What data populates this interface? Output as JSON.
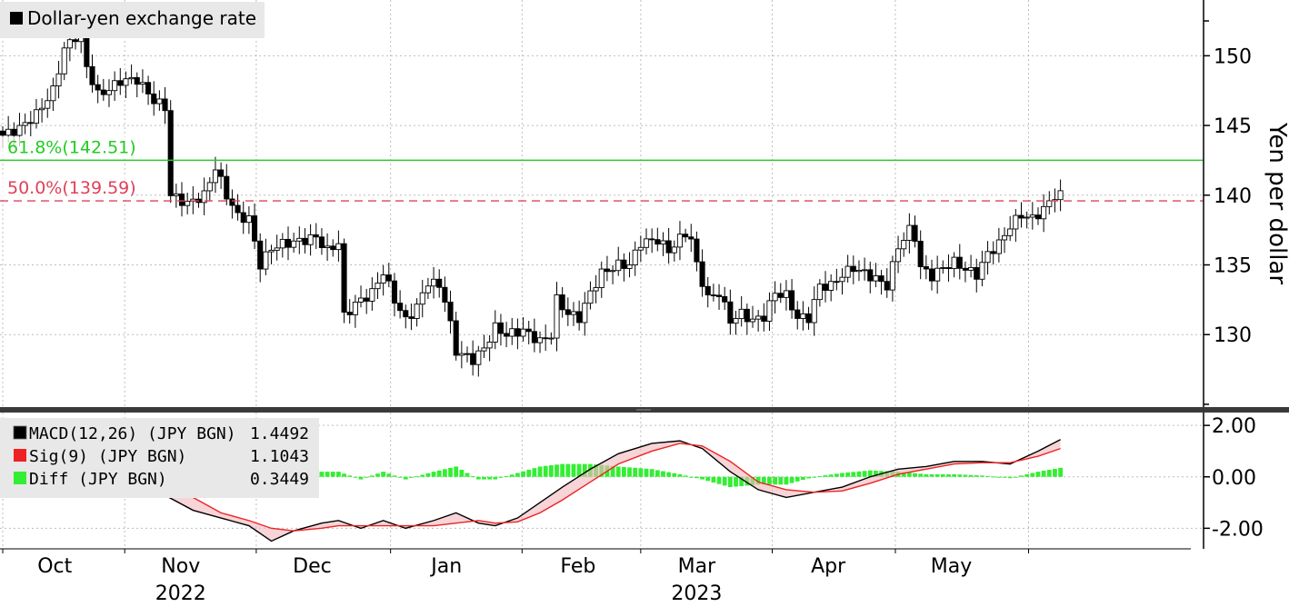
{
  "chart_data": [
    {
      "type": "candlestick",
      "title": "Dollar-yen exchange rate",
      "legend_swatch_color": "#000000",
      "ylabel": "Yen per dollar",
      "ylim": [
        124.8,
        154
      ],
      "yticks": [
        130,
        135,
        140,
        145,
        150
      ],
      "xlim": [
        0,
        200
      ],
      "grid": true,
      "x_ticks": [
        {
          "pos": 9.3,
          "label": "Oct",
          "sub": ""
        },
        {
          "pos": 31.8,
          "label": "Nov",
          "sub": "2022"
        },
        {
          "pos": 55.3,
          "label": "Dec",
          "sub": ""
        },
        {
          "pos": 79.3,
          "label": "Jan",
          "sub": ""
        },
        {
          "pos": 102.8,
          "label": "Feb",
          "sub": ""
        },
        {
          "pos": 124.0,
          "label": "Mar",
          "sub": "2023"
        },
        {
          "pos": 147.5,
          "label": "Apr",
          "sub": ""
        },
        {
          "pos": 169.5,
          "label": "May",
          "sub": ""
        }
      ],
      "month_gridlines": [
        0,
        21.8,
        45.3,
        69.3,
        92.8,
        114.0,
        137.5,
        159.5,
        183.3
      ],
      "reference_lines": [
        {
          "label": "61.8%(142.51)",
          "value": 142.51,
          "color": "#22cc22",
          "style": "solid"
        },
        {
          "label": "50.0%(139.59)",
          "value": 139.59,
          "color": "#e0405a",
          "style": "dashed"
        }
      ],
      "close_anchors": [
        [
          0,
          144.3
        ],
        [
          3,
          144.8
        ],
        [
          6,
          145.8
        ],
        [
          9,
          147.5
        ],
        [
          11,
          150.5
        ],
        [
          14,
          151.8
        ],
        [
          15,
          149.2
        ],
        [
          17,
          147.2
        ],
        [
          19,
          147.6
        ],
        [
          21,
          148.2
        ],
        [
          24,
          148.3
        ],
        [
          27,
          146.8
        ],
        [
          29,
          146.3
        ],
        [
          30,
          140.0
        ],
        [
          33,
          139.4
        ],
        [
          36,
          140.0
        ],
        [
          38,
          142.0
        ],
        [
          40,
          140.0
        ],
        [
          42,
          138.5
        ],
        [
          44,
          138.3
        ],
        [
          46,
          135.0
        ],
        [
          48,
          136.2
        ],
        [
          50,
          136.5
        ],
        [
          53,
          136.7
        ],
        [
          56,
          137.0
        ],
        [
          58,
          136.0
        ],
        [
          60,
          136.6
        ],
        [
          61,
          131.3
        ],
        [
          63,
          132.2
        ],
        [
          66,
          133.0
        ],
        [
          68,
          134.5
        ],
        [
          70,
          132.5
        ],
        [
          72,
          131.0
        ],
        [
          74,
          132.0
        ],
        [
          76,
          133.8
        ],
        [
          78,
          133.5
        ],
        [
          79,
          132.5
        ],
        [
          81,
          128.8
        ],
        [
          84,
          128.2
        ],
        [
          86,
          129.0
        ],
        [
          88,
          130.5
        ],
        [
          90,
          130.0
        ],
        [
          93,
          130.3
        ],
        [
          96,
          129.5
        ],
        [
          98,
          130.0
        ],
        [
          99,
          132.5
        ],
        [
          101,
          131.5
        ],
        [
          103,
          131.2
        ],
        [
          105,
          133.0
        ],
        [
          107,
          134.4
        ],
        [
          110,
          135.0
        ],
        [
          112,
          135.0
        ],
        [
          114,
          136.6
        ],
        [
          117,
          136.8
        ],
        [
          119,
          136.0
        ],
        [
          122,
          137.3
        ],
        [
          123,
          136.8
        ],
        [
          124,
          135.0
        ],
        [
          126,
          132.6
        ],
        [
          128,
          133.0
        ],
        [
          130,
          131.0
        ],
        [
          132,
          131.5
        ],
        [
          134,
          131.0
        ],
        [
          136,
          131.3
        ],
        [
          138,
          133.0
        ],
        [
          140,
          132.8
        ],
        [
          142,
          131.2
        ],
        [
          144,
          131.2
        ],
        [
          146,
          133.5
        ],
        [
          148,
          133.5
        ],
        [
          150,
          134.3
        ],
        [
          152,
          134.8
        ],
        [
          154,
          134.4
        ],
        [
          156,
          134.0
        ],
        [
          158,
          133.5
        ],
        [
          160,
          136.3
        ],
        [
          162,
          137.5
        ],
        [
          163,
          137.0
        ],
        [
          164,
          134.8
        ],
        [
          166,
          134.2
        ],
        [
          168,
          134.8
        ],
        [
          170,
          135.2
        ],
        [
          172,
          134.7
        ],
        [
          174,
          134.3
        ],
        [
          176,
          135.8
        ],
        [
          178,
          136.5
        ],
        [
          180,
          137.8
        ],
        [
          182,
          138.6
        ],
        [
          184,
          138.3
        ],
        [
          186,
          139.0
        ],
        [
          188,
          140.0
        ],
        [
          189,
          140.0
        ]
      ]
    },
    {
      "type": "line",
      "ylim": [
        -2.8,
        2.5
      ],
      "yticks": [
        2.0,
        0.0,
        -2.0
      ],
      "ytick_labels": [
        "2.00",
        "0.00",
        "-2.00"
      ],
      "series": [
        {
          "name": "MACD(12,26) (JPY BGN)",
          "last": "1.4492",
          "color": "#000000",
          "x": [
            0,
            6,
            12,
            18,
            23,
            28,
            34,
            39,
            44,
            48,
            52,
            57,
            60,
            64,
            68,
            72,
            77,
            81,
            85,
            88,
            92,
            96,
            100,
            105,
            110,
            116,
            121,
            125,
            130,
            135,
            140,
            145,
            150,
            155,
            160,
            165,
            170,
            175,
            180,
            185,
            189
          ],
          "y": [
            1.6,
            1.3,
            1.2,
            1.0,
            0.2,
            -0.6,
            -1.3,
            -1.6,
            -1.9,
            -2.5,
            -2.1,
            -1.8,
            -1.7,
            -2.0,
            -1.7,
            -2.0,
            -1.7,
            -1.4,
            -1.8,
            -1.9,
            -1.6,
            -1.0,
            -0.4,
            0.3,
            0.9,
            1.3,
            1.4,
            1.1,
            0.2,
            -0.5,
            -0.8,
            -0.6,
            -0.4,
            -0.0,
            0.3,
            0.4,
            0.6,
            0.6,
            0.5,
            1.0,
            1.45
          ]
        },
        {
          "name": "Sig(9) (JPY BGN)",
          "last": "1.1043",
          "color": "#ee2222",
          "x": [
            0,
            6,
            12,
            18,
            23,
            28,
            34,
            39,
            44,
            48,
            52,
            57,
            60,
            64,
            68,
            72,
            77,
            81,
            85,
            88,
            92,
            96,
            100,
            105,
            110,
            116,
            121,
            125,
            130,
            135,
            140,
            145,
            150,
            155,
            160,
            165,
            170,
            175,
            180,
            185,
            189
          ],
          "y": [
            1.7,
            1.5,
            1.4,
            1.3,
            0.9,
            0.1,
            -0.8,
            -1.4,
            -1.7,
            -2.0,
            -2.1,
            -2.0,
            -1.9,
            -1.9,
            -1.9,
            -1.9,
            -1.9,
            -1.8,
            -1.7,
            -1.8,
            -1.75,
            -1.4,
            -0.9,
            -0.2,
            0.5,
            1.0,
            1.3,
            1.2,
            0.6,
            -0.2,
            -0.5,
            -0.6,
            -0.55,
            -0.25,
            0.1,
            0.3,
            0.5,
            0.55,
            0.55,
            0.8,
            1.1
          ]
        },
        {
          "name": "Diff (JPY BGN)",
          "last": "0.3449",
          "color": "#33ee33",
          "type": "bar",
          "x": [
            0,
            6,
            12,
            18,
            23,
            28,
            34,
            39,
            44,
            48,
            52,
            57,
            60,
            64,
            68,
            72,
            77,
            81,
            85,
            88,
            92,
            96,
            100,
            105,
            110,
            116,
            121,
            125,
            130,
            135,
            140,
            145,
            150,
            155,
            160,
            165,
            170,
            175,
            180,
            185,
            189
          ],
          "y": [
            -0.1,
            -0.2,
            -0.2,
            -0.3,
            -0.7,
            -0.7,
            -0.5,
            -0.2,
            -0.2,
            -0.5,
            0.0,
            0.2,
            0.2,
            -0.1,
            0.2,
            -0.1,
            0.2,
            0.4,
            -0.1,
            -0.1,
            0.15,
            0.4,
            0.5,
            0.5,
            0.4,
            0.3,
            0.1,
            -0.1,
            -0.4,
            -0.3,
            -0.3,
            0.0,
            0.15,
            0.25,
            0.2,
            0.1,
            0.1,
            0.05,
            -0.05,
            0.2,
            0.35
          ]
        }
      ]
    }
  ]
}
